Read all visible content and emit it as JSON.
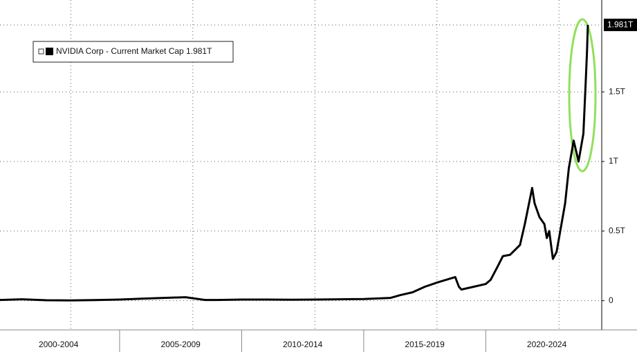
{
  "chart_data": {
    "type": "line",
    "series": [
      {
        "name": "NVIDIA Corp - Current Market Cap 1.981T",
        "color": "#000000",
        "x": [
          2000.1,
          2001,
          2002,
          2003,
          2004,
          2005,
          2006,
          2007.7,
          2008.5,
          2009,
          2010,
          2011,
          2012,
          2013,
          2014,
          2015,
          2016.1,
          2016.5,
          2017,
          2017.5,
          2018,
          2018.75,
          2018.9,
          2019,
          2019.5,
          2020,
          2020.2,
          2020.5,
          2020.7,
          2021,
          2021.4,
          2021.6,
          2021.9,
          2022,
          2022.2,
          2022.4,
          2022.5,
          2022.6,
          2022.75,
          2022.9,
          2023.1,
          2023.25,
          2023.4,
          2023.5,
          2023.6,
          2023.8,
          2023.9,
          2024.0,
          2024.1,
          2024.15,
          2024.18
        ],
        "values": [
          0.005,
          0.01,
          0.003,
          0.002,
          0.004,
          0.008,
          0.015,
          0.025,
          0.005,
          0.005,
          0.008,
          0.008,
          0.007,
          0.008,
          0.01,
          0.012,
          0.02,
          0.04,
          0.06,
          0.1,
          0.13,
          0.17,
          0.1,
          0.08,
          0.1,
          0.12,
          0.15,
          0.25,
          0.32,
          0.33,
          0.4,
          0.55,
          0.81,
          0.7,
          0.6,
          0.55,
          0.45,
          0.5,
          0.3,
          0.35,
          0.55,
          0.7,
          0.95,
          1.05,
          1.15,
          1.0,
          1.1,
          1.2,
          1.6,
          1.8,
          1.981
        ]
      }
    ],
    "last_value": {
      "value": 1.981,
      "label": "1.981T"
    },
    "xlim": [
      2000.1,
      2024.75
    ],
    "xticks": [
      {
        "value": 2002.5,
        "label": "2000-2004"
      },
      {
        "value": 2007.5,
        "label": "2005-2009"
      },
      {
        "value": 2012.5,
        "label": "2010-2014"
      },
      {
        "value": 2017.5,
        "label": "2015-2019"
      },
      {
        "value": 2022.5,
        "label": "2020-2024"
      }
    ],
    "xgrid": [
      2003,
      2008,
      2013,
      2018,
      2023
    ],
    "ylim": [
      -0.21,
      2.16
    ],
    "yticks": [
      0,
      {
        "value": 0.5,
        "label": "0.5T"
      },
      {
        "value": 1,
        "label": "1T"
      },
      {
        "value": 1.5,
        "label": "1.5T"
      }
    ],
    "grid": true
  }
}
